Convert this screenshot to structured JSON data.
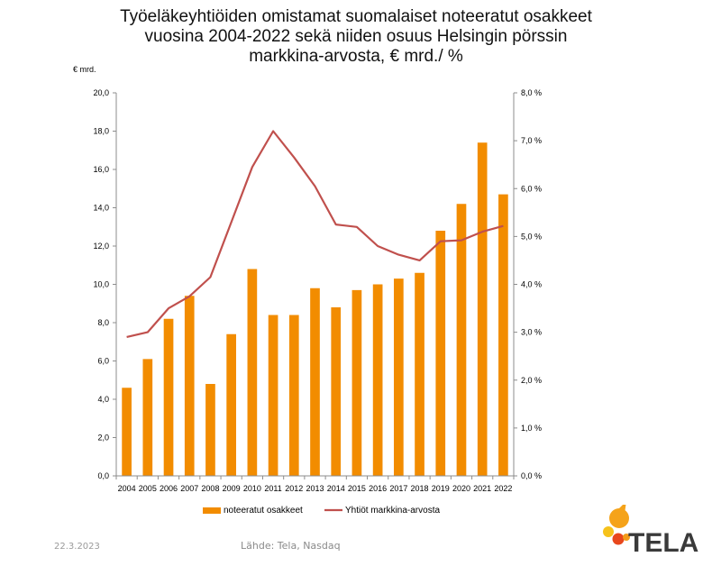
{
  "title_lines": [
    "Työeläkeyhtiöiden omistamat suomalaiset noteeratut osakkeet",
    "vuosina 2004-2022 sekä niiden osuus Helsingin pörssin",
    "markkina-arvosta, € mrd./ %"
  ],
  "left_axis_unit": "€ mrd.",
  "footer": {
    "date": "22.3.2023",
    "source": "Lähde: Tela, Nasdaq"
  },
  "logo": {
    "text": "TELA"
  },
  "colors": {
    "bar": "#f28c00",
    "line": "#c0504d",
    "axis": "#8c8c8c"
  },
  "chart_data": {
    "type": "bar",
    "categories": [
      "2004",
      "2005",
      "2006",
      "2007",
      "2008",
      "2009",
      "2010",
      "2011",
      "2012",
      "2013",
      "2014",
      "2015",
      "2016",
      "2017",
      "2018",
      "2019",
      "2020",
      "2021",
      "2022"
    ],
    "series": [
      {
        "name": "noteeratut osakkeet",
        "type": "bar",
        "axis": "left",
        "values": [
          4.6,
          6.1,
          8.2,
          9.4,
          4.8,
          7.4,
          10.8,
          8.4,
          8.4,
          9.8,
          8.8,
          9.7,
          10.0,
          10.3,
          10.6,
          12.8,
          14.2,
          17.4,
          14.7
        ]
      },
      {
        "name": "Yhtiöt markkina-arvosta",
        "type": "line",
        "axis": "right",
        "values": [
          2.9,
          3.0,
          3.5,
          3.75,
          4.15,
          5.3,
          6.45,
          7.2,
          6.65,
          6.05,
          5.25,
          5.2,
          4.8,
          4.62,
          4.5,
          4.9,
          4.92,
          5.1,
          5.22
        ]
      }
    ],
    "ylim": [
      0,
      20
    ],
    "y_ticks": [
      "0,0",
      "2,0",
      "4,0",
      "6,0",
      "8,0",
      "10,0",
      "12,0",
      "14,0",
      "16,0",
      "18,0",
      "20,0"
    ],
    "y2lim": [
      0,
      8
    ],
    "y2_ticks": [
      "0,0 %",
      "1,0 %",
      "2,0 %",
      "3,0 %",
      "4,0 %",
      "5,0 %",
      "6,0 %",
      "7,0 %",
      "8,0 %"
    ],
    "grid": false,
    "legend_placement": "bottom"
  }
}
